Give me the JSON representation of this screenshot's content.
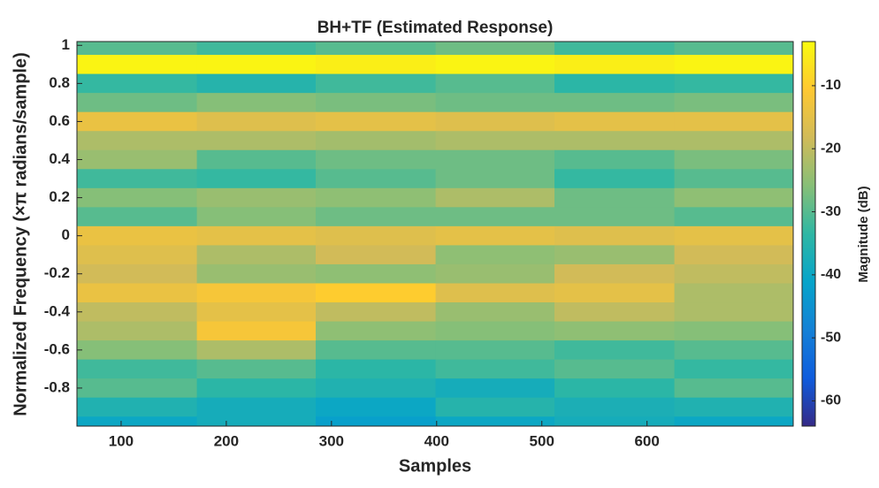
{
  "chart_data": {
    "type": "heatmap",
    "title": "BH+TF (Estimated Response)",
    "xlabel": "Samples",
    "ylabel": "Normalized Frequency (×π radians/sample)",
    "colorbar_label": "Magnitude (dB)",
    "xlim": [
      58,
      739
    ],
    "xticks": [
      100,
      200,
      300,
      400,
      500,
      600
    ],
    "ylim": [
      -1,
      1.02
    ],
    "yticks": [
      1,
      0.8,
      0.6,
      0.4,
      0.2,
      0,
      -0.2,
      -0.4,
      -0.6,
      -0.8
    ],
    "clim": [
      -64,
      -3
    ],
    "cticks": [
      -10,
      -20,
      -30,
      -40,
      -50,
      -60
    ],
    "colormap": [
      "#352a87",
      "#0f5cdd",
      "#1481d6",
      "#06a4ca",
      "#2eb7a4",
      "#87bf77",
      "#d1bb59",
      "#fec832",
      "#f9fb0e"
    ],
    "xbins": [
      58,
      172,
      285,
      399,
      512,
      626,
      739
    ],
    "ybins": [
      1.02,
      0.95,
      0.85,
      0.75,
      0.65,
      0.55,
      0.45,
      0.35,
      0.25,
      0.15,
      0.05,
      -0.05,
      -0.15,
      -0.25,
      -0.35,
      -0.45,
      -0.55,
      -0.65,
      -0.75,
      -0.85,
      -0.95,
      -1
    ],
    "values": [
      [
        -30,
        -32,
        -30,
        -28,
        -32,
        -30
      ],
      [
        -4,
        -4,
        -5,
        -4,
        -5,
        -4
      ],
      [
        -33,
        -35,
        -32,
        -30,
        -34,
        -33
      ],
      [
        -28,
        -26,
        -27,
        -28,
        -28,
        -27
      ],
      [
        -14,
        -16,
        -15,
        -16,
        -15,
        -15
      ],
      [
        -22,
        -22,
        -23,
        -22,
        -22,
        -22
      ],
      [
        -24,
        -30,
        -28,
        -28,
        -30,
        -27
      ],
      [
        -32,
        -33,
        -30,
        -28,
        -33,
        -30
      ],
      [
        -26,
        -24,
        -25,
        -22,
        -28,
        -25
      ],
      [
        -30,
        -26,
        -28,
        -28,
        -28,
        -30
      ],
      [
        -14,
        -15,
        -16,
        -15,
        -16,
        -15
      ],
      [
        -16,
        -22,
        -18,
        -25,
        -24,
        -18
      ],
      [
        -18,
        -24,
        -25,
        -24,
        -18,
        -20
      ],
      [
        -14,
        -12,
        -10,
        -16,
        -15,
        -22
      ],
      [
        -20,
        -15,
        -20,
        -24,
        -20,
        -22
      ],
      [
        -22,
        -12,
        -25,
        -26,
        -25,
        -26
      ],
      [
        -26,
        -22,
        -30,
        -30,
        -32,
        -30
      ],
      [
        -32,
        -30,
        -34,
        -32,
        -30,
        -33
      ],
      [
        -30,
        -34,
        -36,
        -38,
        -34,
        -30
      ],
      [
        -36,
        -38,
        -40,
        -35,
        -37,
        -36
      ],
      [
        -40,
        -38,
        -42,
        -40,
        -38,
        -40
      ]
    ]
  }
}
